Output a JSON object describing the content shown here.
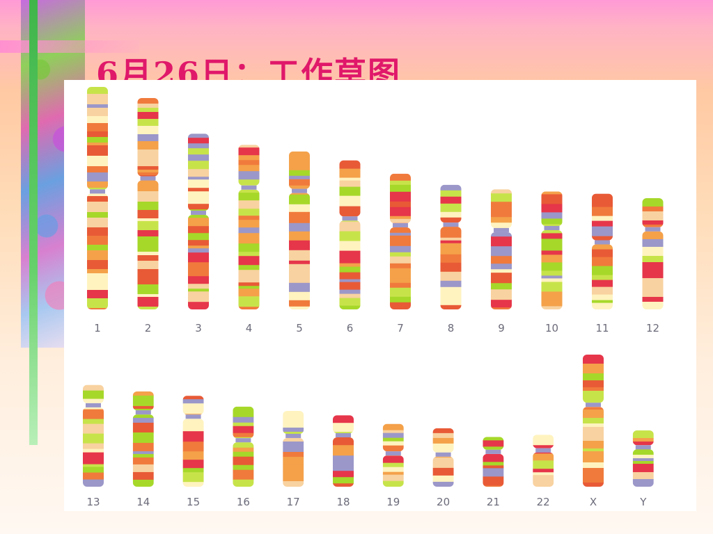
{
  "slide": {
    "title": "6月26日：工作草图"
  },
  "karyotype": {
    "rows": [
      {
        "chromosomes": [
          {
            "label": "1",
            "p_arm": 0.47,
            "length": 1.0
          },
          {
            "label": "2",
            "p_arm": 0.38,
            "length": 0.95
          },
          {
            "label": "3",
            "p_arm": 0.45,
            "length": 0.79
          },
          {
            "label": "4",
            "p_arm": 0.26,
            "length": 0.74
          },
          {
            "label": "5",
            "p_arm": 0.25,
            "length": 0.71
          },
          {
            "label": "6",
            "p_arm": 0.39,
            "length": 0.67
          },
          {
            "label": "7",
            "p_arm": 0.38,
            "length": 0.61
          },
          {
            "label": "8",
            "p_arm": 0.32,
            "length": 0.56
          },
          {
            "label": "9",
            "p_arm": 0.34,
            "length": 0.54
          },
          {
            "label": "10",
            "p_arm": 0.31,
            "length": 0.53
          },
          {
            "label": "11",
            "p_arm": 0.42,
            "length": 0.52
          },
          {
            "label": "12",
            "p_arm": 0.28,
            "length": 0.5
          }
        ]
      },
      {
        "chromosomes": [
          {
            "label": "13",
            "p_arm": 0.2,
            "length": 0.47
          },
          {
            "label": "14",
            "p_arm": 0.22,
            "length": 0.44
          },
          {
            "label": "15",
            "p_arm": 0.23,
            "length": 0.42
          },
          {
            "label": "16",
            "p_arm": 0.42,
            "length": 0.37
          },
          {
            "label": "17",
            "p_arm": 0.33,
            "length": 0.35
          },
          {
            "label": "18",
            "p_arm": 0.28,
            "length": 0.33
          },
          {
            "label": "19",
            "p_arm": 0.47,
            "length": 0.29
          },
          {
            "label": "20",
            "p_arm": 0.45,
            "length": 0.27
          },
          {
            "label": "21",
            "p_arm": 0.3,
            "length": 0.23
          },
          {
            "label": "22",
            "p_arm": 0.3,
            "length": 0.24
          },
          {
            "label": "X",
            "p_arm": 0.38,
            "length": 0.61
          },
          {
            "label": "Y",
            "p_arm": 0.3,
            "length": 0.26
          }
        ]
      }
    ],
    "colors": {
      "band_palette": [
        "#a6d82a",
        "#f07a3c",
        "#e85a36",
        "#c7e34a",
        "#f4a14a",
        "#e6364a",
        "#f8d2a0",
        "#fff3c0",
        "#9b97c9"
      ],
      "centromere": "#9b97c9",
      "label": "#6b6b7a"
    }
  }
}
